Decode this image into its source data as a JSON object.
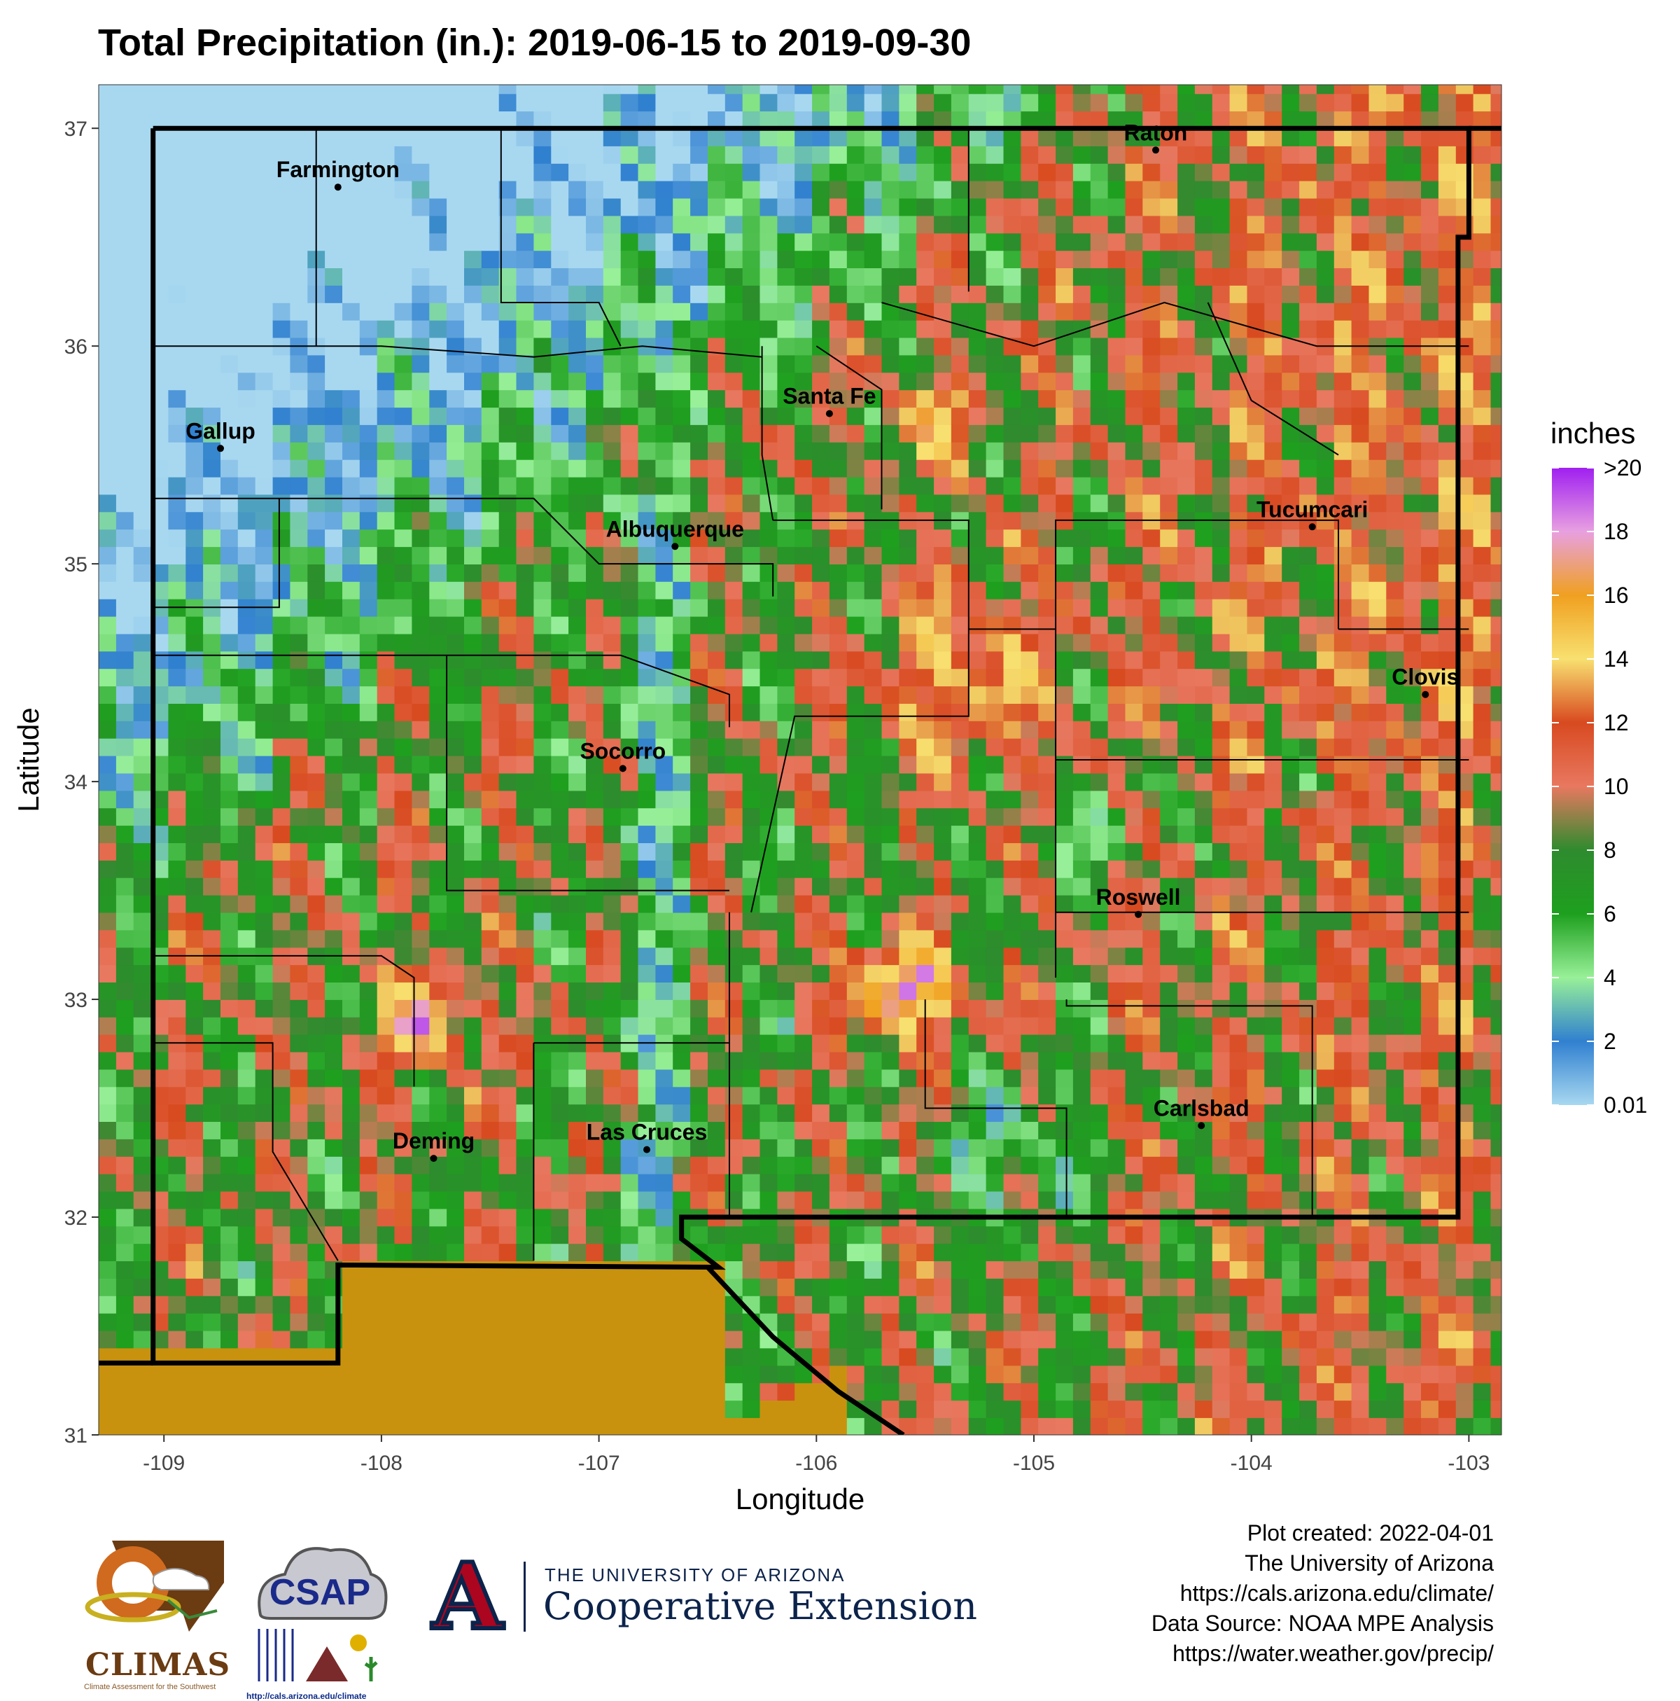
{
  "title": "Total Precipitation (in.): 2019-06-15 to 2019-09-30",
  "map": {
    "xlabel": "Longitude",
    "ylabel": "Latitude",
    "x_ticks": [
      "-109",
      "-108",
      "-107",
      "-106",
      "-105",
      "-104",
      "-103"
    ],
    "y_ticks": [
      "37",
      "36",
      "35",
      "34",
      "33",
      "32",
      "31"
    ],
    "lon_range": [
      -109.3,
      -102.85
    ],
    "lat_range": [
      31.0,
      37.2
    ],
    "cities": [
      {
        "name": "Farmington",
        "lon": -108.2,
        "lat": 36.73
      },
      {
        "name": "Gallup",
        "lon": -108.74,
        "lat": 35.53
      },
      {
        "name": "Santa Fe",
        "lon": -105.94,
        "lat": 35.69
      },
      {
        "name": "Raton",
        "lon": -104.44,
        "lat": 36.9
      },
      {
        "name": "Albuquerque",
        "lon": -106.65,
        "lat": 35.08
      },
      {
        "name": "Tucumcari",
        "lon": -103.72,
        "lat": 35.17
      },
      {
        "name": "Clovis",
        "lon": -103.2,
        "lat": 34.4
      },
      {
        "name": "Socorro",
        "lon": -106.89,
        "lat": 34.06
      },
      {
        "name": "Roswell",
        "lon": -104.52,
        "lat": 33.39
      },
      {
        "name": "Carlsbad",
        "lon": -104.23,
        "lat": 32.42
      },
      {
        "name": "Deming",
        "lon": -107.76,
        "lat": 32.27
      },
      {
        "name": "Las Cruces",
        "lon": -106.78,
        "lat": 32.31
      }
    ]
  },
  "legend": {
    "title": "inches",
    "labels": [
      ">20",
      "18",
      "16",
      "14",
      "12",
      "10",
      "8",
      "6",
      "4",
      "2",
      "0.01"
    ],
    "colors": [
      "#a020f0",
      "#e8a0e0",
      "#f0a020",
      "#f8e070",
      "#e0701e",
      "#e87860",
      "#2e8b2e",
      "#1ea01e",
      "#98f098",
      "#3080d0",
      "#a8d8f0"
    ]
  },
  "footer": {
    "lines": [
      "Plot created: 2022-04-01",
      "The University of Arizona",
      "https://cals.arizona.edu/climate/",
      "Data Source: NOAA MPE Analysis",
      "https://water.weather.gov/precip/"
    ]
  },
  "logos": {
    "climas": "CLIMAS",
    "climas_sub": "Climate Assessment for the Southwest",
    "csap": "CSAP",
    "csap_url": "http://cals.arizona.edu/climate",
    "ua_line1": "THE UNIVERSITY OF ARIZONA",
    "ua_line2": "Cooperative Extension",
    "ua_letter": "A"
  }
}
